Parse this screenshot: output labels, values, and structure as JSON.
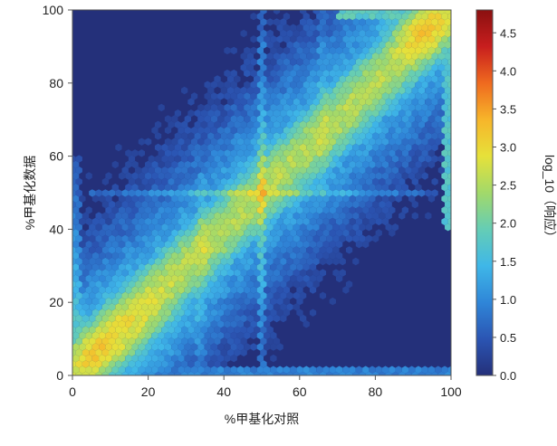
{
  "chart_data": {
    "type": "heatmap",
    "subtype": "hexbin",
    "title": "",
    "xlabel": "%甲基化对照",
    "ylabel": "%甲基化数据",
    "xlim": [
      0,
      100
    ],
    "ylim": [
      0,
      100
    ],
    "xticks": [
      "0",
      "20",
      "40",
      "60",
      "80",
      "100"
    ],
    "yticks": [
      "0",
      "20",
      "40",
      "60",
      "80",
      "100"
    ],
    "colorbar": {
      "label": "log_10（响应）",
      "range": [
        0,
        4.8
      ],
      "ticks": [
        "0.0",
        "0.5",
        "1.0",
        "1.5",
        "2.0",
        "2.5",
        "3.0",
        "3.5",
        "4.0",
        "4.5"
      ],
      "colormap": "jet",
      "colors": [
        "#24307a",
        "#2b55b3",
        "#2f86d8",
        "#3fb7e8",
        "#65cdb5",
        "#a2d96a",
        "#e6e13a",
        "#f7b52a",
        "#ef6a1f",
        "#c81e1e",
        "#8a1010"
      ]
    },
    "background_color": "#24307a",
    "hex_approx": [
      {
        "x": 92,
        "y": 95,
        "value": 3.1
      },
      {
        "x": 5,
        "y": 7,
        "value": 3.0
      },
      {
        "x": 50,
        "y": 50,
        "value": 2.4
      },
      {
        "x": 30,
        "y": 30,
        "value": 2.4
      },
      {
        "x": 70,
        "y": 70,
        "value": 2.5
      },
      {
        "x": 20,
        "y": 15,
        "value": 2.6
      },
      {
        "x": 80,
        "y": 85,
        "value": 2.7
      },
      {
        "x": 35,
        "y": 60,
        "value": 1.4
      },
      {
        "x": 65,
        "y": 35,
        "value": 1.3
      },
      {
        "x": 15,
        "y": 60,
        "value": 0.6
      },
      {
        "x": 85,
        "y": 30,
        "value": 0.5
      },
      {
        "x": 5,
        "y": 90,
        "value": 0.05
      },
      {
        "x": 95,
        "y": 5,
        "value": 0.05
      }
    ]
  }
}
